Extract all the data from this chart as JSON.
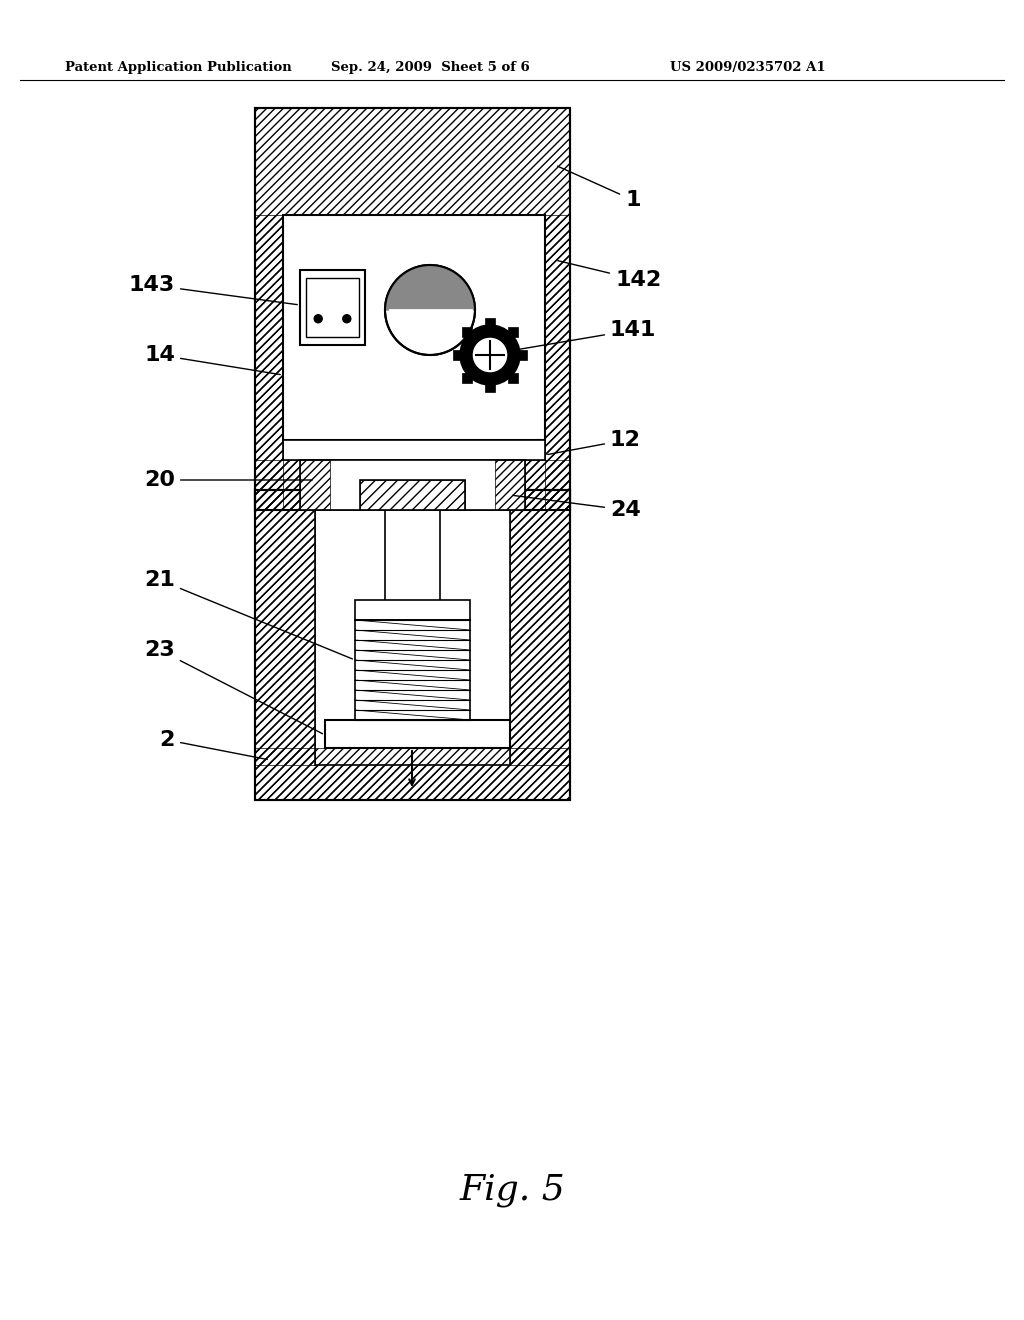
{
  "bg_color": "#ffffff",
  "header_left": "Patent Application Publication",
  "header_mid": "Sep. 24, 2009  Sheet 5 of 6",
  "header_right": "US 2009/0235702 A1",
  "fig_label": "Fig. 5"
}
